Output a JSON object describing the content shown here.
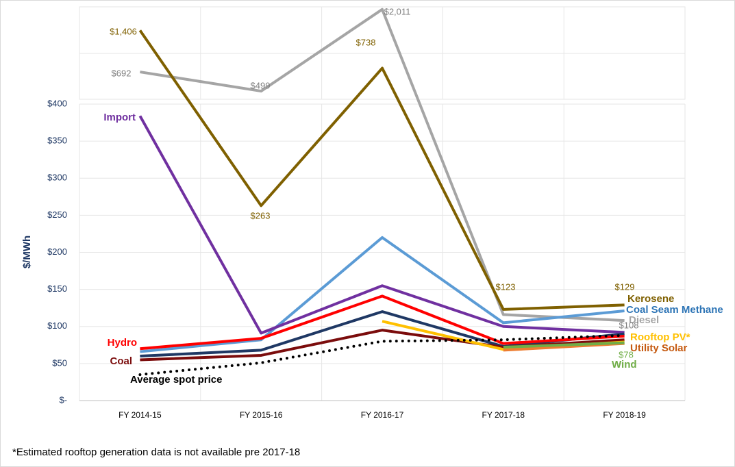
{
  "chart_data": {
    "type": "line",
    "y_label": "$/MWh",
    "footnote": "*Estimated rooftop generation data is not available pre 2017-18",
    "categories": [
      "FY 2014-15",
      "FY 2015-16",
      "FY 2016-17",
      "FY 2017-18",
      "FY 2018-19"
    ],
    "ylim": [
      0,
      2100
    ],
    "yticks": [
      {
        "value": 0,
        "label": "$-"
      },
      {
        "value": 50,
        "label": "$50"
      },
      {
        "value": 100,
        "label": "$100"
      },
      {
        "value": 150,
        "label": "$150"
      },
      {
        "value": 200,
        "label": "$200"
      },
      {
        "value": 250,
        "label": "$250"
      },
      {
        "value": 300,
        "label": "$300"
      },
      {
        "value": 350,
        "label": "$350"
      },
      {
        "value": 400,
        "label": "$400"
      }
    ],
    "grid": true,
    "series": [
      {
        "name": "Kerosene",
        "color": "#7f6000",
        "values": [
          1406,
          263,
          738,
          123,
          129
        ],
        "value_labels": [
          "$1,406",
          "$263",
          "$738",
          "$123",
          "$129"
        ]
      },
      {
        "name": "Diesel",
        "color": "#a5a5a5",
        "values": [
          692,
          499,
          2011,
          116,
          108
        ],
        "value_labels": [
          "$692",
          "$499",
          "$2,011",
          null,
          "$108"
        ]
      },
      {
        "name": "Import",
        "color": "#7030a0",
        "values": [
          384,
          91,
          155,
          100,
          92
        ]
      },
      {
        "name": "Coal Seam Methane",
        "color": "#5b9bd5",
        "values": [
          66,
          82,
          220,
          105,
          121
        ]
      },
      {
        "name": null,
        "color": "#1f3864",
        "values": [
          60,
          68,
          120,
          73,
          90
        ]
      },
      {
        "name": "Hydro",
        "color": "#ff0000",
        "values": [
          70,
          84,
          141,
          77,
          87
        ]
      },
      {
        "name": "Coal",
        "color": "#7b0c0c",
        "values": [
          55,
          61,
          95,
          72,
          82
        ]
      },
      {
        "name": "Rooftop PV*",
        "color": "#ffc000",
        "values": [
          null,
          null,
          107,
          69,
          79
        ]
      },
      {
        "name": "Utility Solar",
        "color": "#ed7d31",
        "values": [
          null,
          null,
          null,
          68,
          77
        ]
      },
      {
        "name": "Wind",
        "color": "#70ad47",
        "values": [
          null,
          null,
          null,
          72,
          78
        ],
        "value_labels": [
          null,
          null,
          null,
          null,
          "$78"
        ]
      },
      {
        "name": "Average spot price",
        "color": "#000000",
        "dotted": true,
        "values": [
          35,
          51,
          80,
          82,
          88
        ]
      }
    ]
  }
}
